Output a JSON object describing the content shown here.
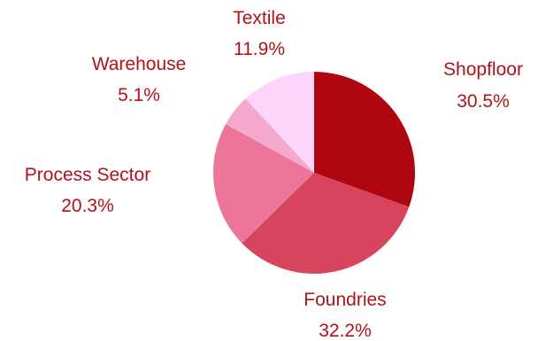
{
  "chart_data": {
    "type": "pie",
    "title": "",
    "slices": [
      {
        "label": "Shopfloor",
        "value": 30.5,
        "display": "30.5%",
        "color": "#b00610"
      },
      {
        "label": "Foundries",
        "value": 32.2,
        "display": "32.2%",
        "color": "#d8435d"
      },
      {
        "label": "Process Sector",
        "value": 20.3,
        "display": "20.3%",
        "color": "#ec7699"
      },
      {
        "label": "Warehouse",
        "value": 5.1,
        "display": "5.1%",
        "color": "#f4a9cc"
      },
      {
        "label": "Textile",
        "value": 11.9,
        "display": "11.9%",
        "color": "#fdd5fb"
      }
    ],
    "start_angle": "top (12 o'clock)",
    "direction": "clockwise",
    "legend": "none"
  },
  "colors": {
    "label_text": "#b0121a",
    "background": "#ffffff"
  }
}
